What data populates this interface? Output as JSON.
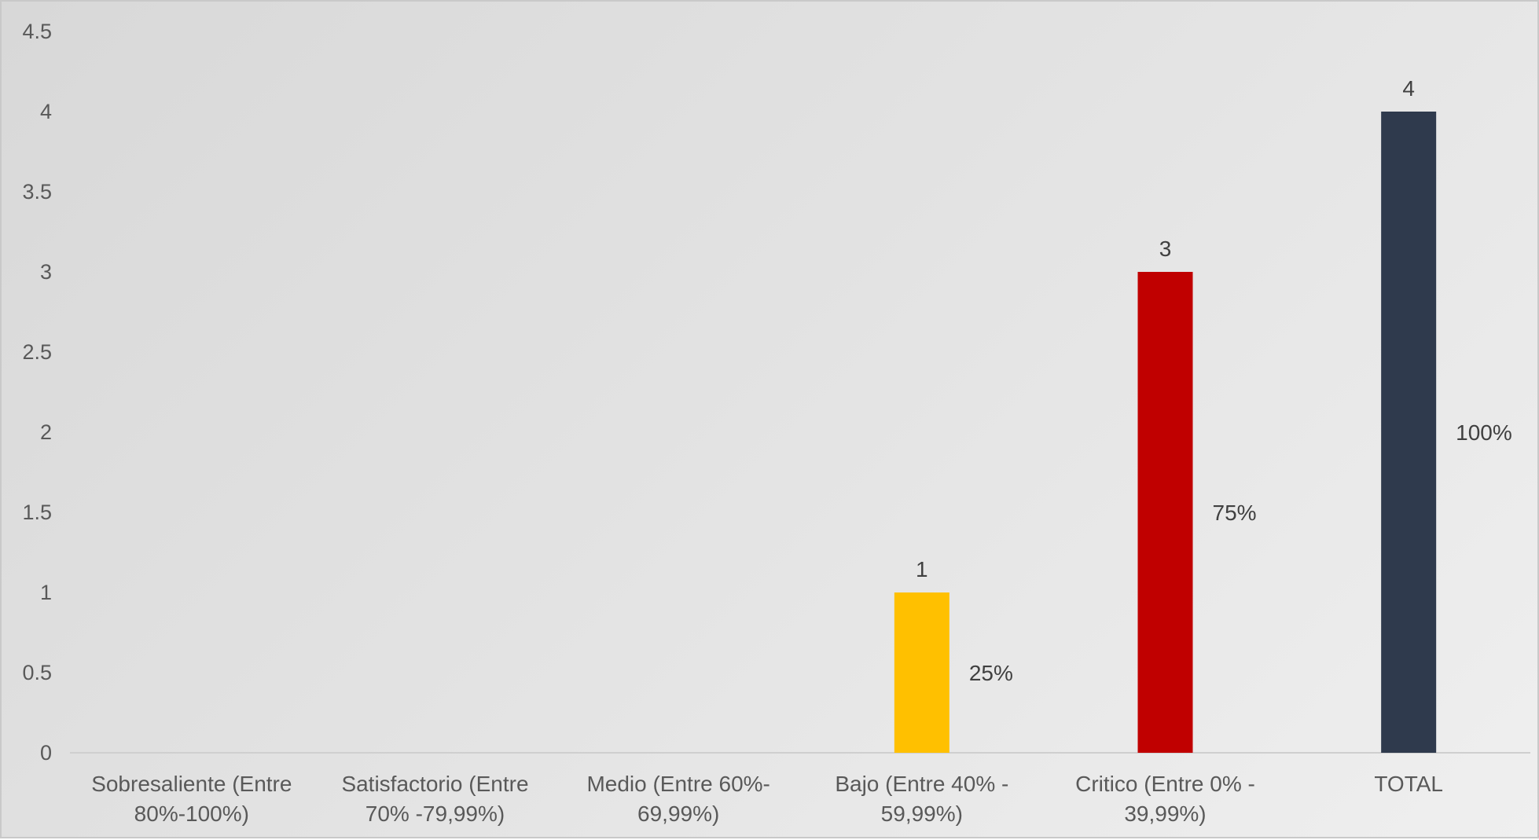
{
  "chart_data": {
    "type": "bar",
    "title": "",
    "xlabel": "",
    "ylabel": "",
    "ylim": [
      0,
      4.5
    ],
    "yticks": [
      "0",
      "0.5",
      "1",
      "1.5",
      "2",
      "2.5",
      "3",
      "3.5",
      "4",
      "4.5"
    ],
    "grid": false,
    "legend": "none",
    "categories": [
      [
        "Sobresaliente  (Entre",
        "80%-100%)"
      ],
      [
        "Satisfactorio (Entre",
        "70% -79,99%)"
      ],
      [
        "Medio (Entre 60%-",
        "69,99%)"
      ],
      [
        "Bajo (Entre 40% -",
        "59,99%)"
      ],
      [
        "Critico (Entre 0% -",
        "39,99%)"
      ],
      [
        "TOTAL"
      ]
    ],
    "values": [
      0,
      0,
      0,
      1,
      3,
      4
    ],
    "value_labels": [
      "",
      "",
      "",
      "1",
      "3",
      "4"
    ],
    "percent_labels": [
      "",
      "",
      "",
      "25%",
      "75%",
      "100%"
    ],
    "colors": [
      "#FFC000",
      "#FFC000",
      "#FFC000",
      "#FFC000",
      "#C00000",
      "#2F3A4D"
    ]
  }
}
